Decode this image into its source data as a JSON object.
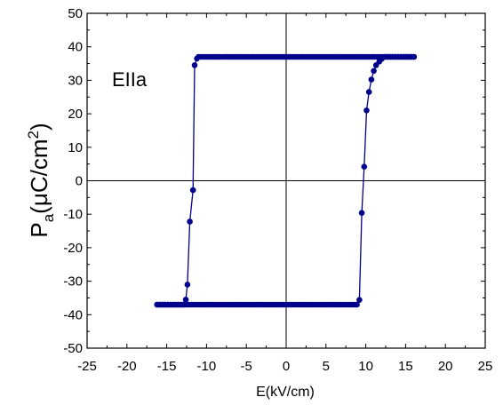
{
  "chart_data": {
    "type": "scatter",
    "title": "",
    "annotation": "EIIa",
    "xlabel": "E(kV/cm)",
    "ylabel": {
      "main": "P",
      "sub": "a",
      "unit_open": "(",
      "mu": "μ",
      "unit": "C/cm",
      "sup": "2",
      "unit_close": ")"
    },
    "xlim": [
      -25,
      25
    ],
    "ylim": [
      -50,
      50
    ],
    "xticks": [
      -25,
      -20,
      -15,
      -10,
      -5,
      0,
      5,
      10,
      15,
      20,
      25
    ],
    "yticks": [
      -50,
      -40,
      -30,
      -20,
      -10,
      0,
      10,
      20,
      30,
      40,
      50
    ],
    "grid": false,
    "zero_lines": true,
    "series_color": "#00008b",
    "series": [
      {
        "segments": [
          {
            "kind": "flat",
            "x_start": -16.2,
            "x_end": 9.0,
            "y": -37
          },
          {
            "kind": "points",
            "points": [
              [
                9.2,
                -35.6
              ],
              [
                9.5,
                -9.6
              ],
              [
                9.8,
                4.2
              ],
              [
                10.1,
                21.0
              ],
              [
                10.4,
                26.5
              ],
              [
                10.7,
                30.2
              ],
              [
                11.0,
                32.8
              ],
              [
                11.3,
                34.5
              ],
              [
                11.7,
                35.6
              ],
              [
                12.0,
                36.4
              ]
            ]
          },
          {
            "kind": "flat",
            "x_start": 12.4,
            "x_end": 16.2,
            "y": 37
          },
          {
            "kind": "flat",
            "x_start": -11.0,
            "x_end": 16.2,
            "y": 37
          },
          {
            "kind": "points",
            "points": [
              [
                -11.2,
                36.5
              ],
              [
                -11.5,
                34.5
              ],
              [
                -11.7,
                -2.8
              ],
              [
                -12.1,
                -12.2
              ],
              [
                -12.4,
                -31.0
              ],
              [
                -12.6,
                -35.5
              ]
            ]
          },
          {
            "kind": "flat",
            "x_start": -16.2,
            "x_end": -12.8,
            "y": -37
          }
        ],
        "path": [
          [
            -16.2,
            -37
          ],
          [
            9.0,
            -37
          ],
          [
            9.2,
            -35.6
          ],
          [
            9.5,
            -9.6
          ],
          [
            9.8,
            4.2
          ],
          [
            10.1,
            21.0
          ],
          [
            10.4,
            26.5
          ],
          [
            10.7,
            30.2
          ],
          [
            11.0,
            32.8
          ],
          [
            11.3,
            34.5
          ],
          [
            11.7,
            35.6
          ],
          [
            12.0,
            36.4
          ],
          [
            12.4,
            37
          ],
          [
            16.2,
            37
          ],
          [
            -11.0,
            37
          ],
          [
            -11.2,
            36.5
          ],
          [
            -11.5,
            34.5
          ],
          [
            -11.7,
            -2.8
          ],
          [
            -12.1,
            -12.2
          ],
          [
            -12.4,
            -31.0
          ],
          [
            -12.6,
            -35.5
          ],
          [
            -12.8,
            -37
          ],
          [
            -16.2,
            -37
          ]
        ]
      }
    ]
  }
}
